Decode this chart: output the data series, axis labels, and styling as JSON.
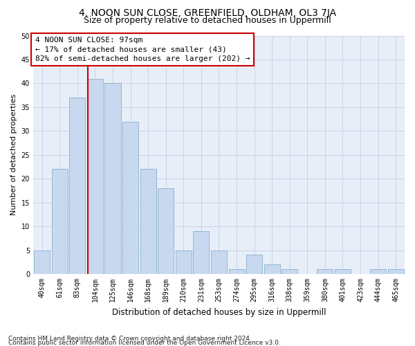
{
  "title": "4, NOON SUN CLOSE, GREENFIELD, OLDHAM, OL3 7JA",
  "subtitle": "Size of property relative to detached houses in Uppermill",
  "xlabel": "Distribution of detached houses by size in Uppermill",
  "ylabel": "Number of detached properties",
  "categories": [
    "40sqm",
    "61sqm",
    "83sqm",
    "104sqm",
    "125sqm",
    "146sqm",
    "168sqm",
    "189sqm",
    "210sqm",
    "231sqm",
    "253sqm",
    "274sqm",
    "295sqm",
    "316sqm",
    "338sqm",
    "359sqm",
    "380sqm",
    "401sqm",
    "423sqm",
    "444sqm",
    "465sqm"
  ],
  "values": [
    5,
    22,
    37,
    41,
    40,
    32,
    22,
    18,
    5,
    9,
    5,
    1,
    4,
    2,
    1,
    0,
    1,
    1,
    0,
    1,
    1
  ],
  "bar_color": "#c8d8ee",
  "bar_edge_color": "#8ab0d0",
  "vline_x": 2.575,
  "vline_color": "#cc0000",
  "annotation_text": "4 NOON SUN CLOSE: 97sqm\n← 17% of detached houses are smaller (43)\n82% of semi-detached houses are larger (202) →",
  "annotation_box_color": "#ffffff",
  "annotation_box_edge_color": "#cc0000",
  "ylim": [
    0,
    50
  ],
  "yticks": [
    0,
    5,
    10,
    15,
    20,
    25,
    30,
    35,
    40,
    45,
    50
  ],
  "grid_color": "#c8d4e8",
  "background_color": "#e8eef8",
  "footer_line1": "Contains HM Land Registry data © Crown copyright and database right 2024.",
  "footer_line2": "Contains public sector information licensed under the Open Government Licence v3.0.",
  "title_fontsize": 10,
  "subtitle_fontsize": 9,
  "xlabel_fontsize": 8.5,
  "ylabel_fontsize": 8,
  "tick_fontsize": 7,
  "annotation_fontsize": 8,
  "footer_fontsize": 6.5
}
